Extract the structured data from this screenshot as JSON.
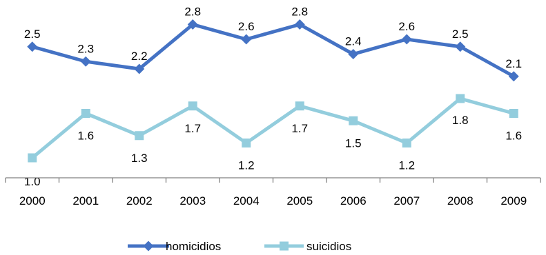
{
  "chart_data": {
    "type": "line",
    "categories": [
      "2000",
      "2001",
      "2002",
      "2003",
      "2004",
      "2005",
      "2006",
      "2007",
      "2008",
      "2009"
    ],
    "series": [
      {
        "name": "homicidios",
        "values": [
          2.5,
          2.3,
          2.2,
          2.8,
          2.6,
          2.8,
          2.4,
          2.6,
          2.5,
          2.1
        ],
        "labels": [
          "2.5",
          "2.3",
          "2.2",
          "2.8",
          "2.6",
          "2.8",
          "2.4",
          "2.6",
          "2.5",
          "2.1"
        ],
        "color": "#4472C4",
        "marker": "diamond"
      },
      {
        "name": "suicidios",
        "values": [
          1.0,
          1.6,
          1.3,
          1.7,
          1.2,
          1.7,
          1.5,
          1.2,
          1.8,
          1.6
        ],
        "labels": [
          "1.0",
          "1.6",
          "1.3",
          "1.7",
          "1.2",
          "1.7",
          "1.5",
          "1.2",
          "1.8",
          "1.6"
        ],
        "color": "#93CDDD",
        "marker": "square"
      }
    ],
    "title": "",
    "xlabel": "",
    "ylabel": "",
    "y_axis_visible": false,
    "grid": false,
    "legend_position": "bottom",
    "axis_color": "#808080"
  }
}
